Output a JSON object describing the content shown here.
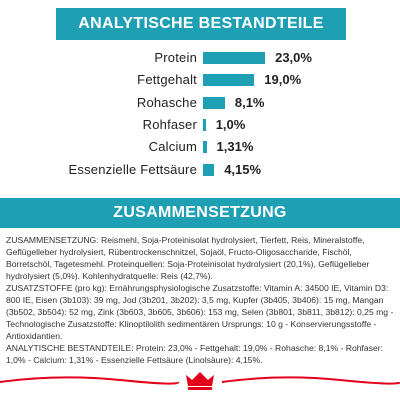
{
  "chart_data": {
    "type": "bar",
    "title": "ANALYTISCHE BESTANDTEILE",
    "categories": [
      "Protein",
      "Fettgehalt",
      "Rohasche",
      "Rohfaser",
      "Calcium",
      "Essenzielle Fettsäure"
    ],
    "values": [
      23.0,
      19.0,
      8.1,
      1.0,
      1.31,
      4.15
    ],
    "value_labels": [
      "23,0%",
      "19,0%",
      "8,1%",
      "1,0%",
      "1,31%",
      "4,15%"
    ],
    "color": "#1e9fb4"
  },
  "composition": {
    "title": "ZUSAMMENSETZUNG",
    "paragraphs": [
      "ZUSAMMENSETZUNG: Reismehl, Soja-Proteinisolat hydrolysiert, Tierfett, Reis, Mineralstoffe, Geflügelleber hydrolysiert, Rübentrockenschnitzel, Sojaöl, Fructo-Oligosaccharide, Fischöl, Borretschöl, Tagetesmehl. Proteinquellen: Soja-Proteinisolat hydrolysiert (20,1%), Geflügelleber hydrolysiert (5,0%). Kohlenhydratquelle: Reis (42,7%).",
      "ZUSATZSTOFFE (pro kg): Ernährungsphysiologische Zusatzstoffe: Vitamin A: 34500 IE, Vitamin D3: 800 IE, Eisen (3b103): 39 mg, Jod (3b201, 3b202): 3,5 mg, Kupfer (3b405, 3b406): 15 mg, Mangan (3b502, 3b504): 52 mg, Zink (3b603, 3b605, 3b606): 153 mg, Selen (3b801, 3b811, 3b812): 0,25 mg - Technologische Zusatzstoffe: Klinoptilolith sedimentären Ursprungs: 10 g - Konservierungsstoffe - Antioxidantien.",
      "ANALYTISCHE BESTANDTEILE: Protein: 23,0% - Fettgehalt: 19,0% - Rohasche: 8,1% - Rohfaser: 1,0% - Calcium: 1,31% - Essenzielle Fettsäure (Linolsäure): 4,15%."
    ]
  }
}
